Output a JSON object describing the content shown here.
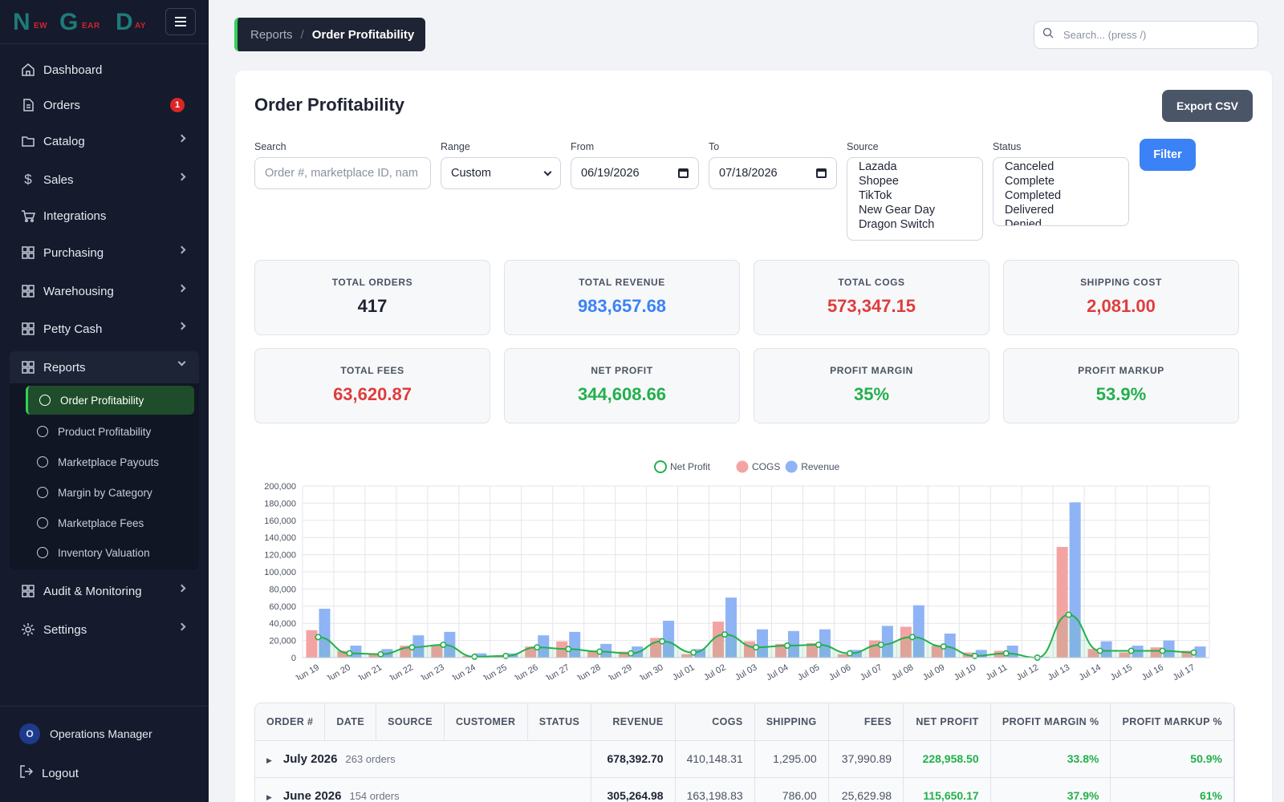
{
  "brand": {
    "letters": [
      "N",
      "G",
      "D"
    ],
    "small": [
      "EW",
      "EAR",
      "AY"
    ]
  },
  "sidebar": {
    "items": [
      {
        "label": "Dashboard",
        "icon": "home-icon"
      },
      {
        "label": "Orders",
        "icon": "document-icon",
        "badge": "1"
      },
      {
        "label": "Catalog",
        "icon": "folder-icon"
      },
      {
        "label": "Sales",
        "icon": "dollar-icon"
      },
      {
        "label": "Integrations",
        "icon": "cart-icon"
      },
      {
        "label": "Purchasing",
        "icon": "grid-icon"
      },
      {
        "label": "Warehousing",
        "icon": "grid-icon"
      },
      {
        "label": "Petty Cash",
        "icon": "grid-icon"
      },
      {
        "label": "Reports",
        "icon": "grid-icon"
      },
      {
        "label": "Audit & Monitoring",
        "icon": "grid-icon"
      },
      {
        "label": "Settings",
        "icon": "gear-icon"
      }
    ],
    "reports_sub": [
      "Order Profitability",
      "Product Profitability",
      "Marketplace Payouts",
      "Margin by Category",
      "Marketplace Fees",
      "Inventory Valuation"
    ],
    "user": {
      "initial": "O",
      "name": "Operations Manager"
    },
    "logout": "Logout"
  },
  "breadcrumb": {
    "parent": "Reports",
    "sep": "/",
    "current": "Order Profitability"
  },
  "global_search": {
    "placeholder": "Search... (press /)"
  },
  "page": {
    "title": "Order Profitability",
    "export_label": "Export CSV"
  },
  "filters": {
    "search": {
      "label": "Search",
      "placeholder": "Order #, marketplace ID, nam"
    },
    "range": {
      "label": "Range",
      "value": "Custom"
    },
    "from": {
      "label": "From",
      "value": "06/19/2026"
    },
    "to": {
      "label": "To",
      "value": "07/18/2026"
    },
    "source": {
      "label": "Source",
      "options": [
        "Lazada",
        "Shopee",
        "TikTok",
        "New Gear Day",
        "Dragon Switch"
      ]
    },
    "status": {
      "label": "Status",
      "options": [
        "Canceled",
        "Complete",
        "Completed",
        "Delivered",
        "Denied"
      ]
    },
    "filter_label": "Filter"
  },
  "kpis": [
    {
      "label": "TOTAL ORDERS",
      "value": "417",
      "color": "#1e2433"
    },
    {
      "label": "TOTAL REVENUE",
      "value": "983,657.68",
      "color": "#3b82f6"
    },
    {
      "label": "TOTAL COGS",
      "value": "573,347.15",
      "color": "#e03c3c"
    },
    {
      "label": "SHIPPING COST",
      "value": "2,081.00",
      "color": "#e03c3c"
    },
    {
      "label": "TOTAL FEES",
      "value": "63,620.87",
      "color": "#e03c3c"
    },
    {
      "label": "NET PROFIT",
      "value": "344,608.66",
      "color": "#22b04b"
    },
    {
      "label": "PROFIT MARGIN",
      "value": "35%",
      "color": "#22b04b"
    },
    {
      "label": "PROFIT MARKUP",
      "value": "53.9%",
      "color": "#22b04b"
    }
  ],
  "chart_data": {
    "type": "bar",
    "categories": [
      "Jun 19",
      "Jun 20",
      "Jun 21",
      "Jun 22",
      "Jun 23",
      "Jun 24",
      "Jun 25",
      "Jun 26",
      "Jun 27",
      "Jun 28",
      "Jun 29",
      "Jun 30",
      "Jul 01",
      "Jul 02",
      "Jul 03",
      "Jul 04",
      "Jul 05",
      "Jul 06",
      "Jul 07",
      "Jul 08",
      "Jul 09",
      "Jul 10",
      "Jul 11",
      "Jul 12",
      "Jul 13",
      "Jul 14",
      "Jul 15",
      "Jul 16",
      "Jul 17"
    ],
    "series": [
      {
        "name": "Net Profit",
        "type": "line",
        "color": "#22b04b",
        "values": [
          24000,
          5000,
          4000,
          12000,
          15000,
          1000,
          2000,
          12000,
          10000,
          7000,
          5000,
          19000,
          6000,
          27000,
          12000,
          14000,
          15000,
          5000,
          15000,
          24000,
          13000,
          2000,
          5000,
          0,
          50000,
          8000,
          8000,
          8000,
          6000
        ]
      },
      {
        "name": "COGS",
        "type": "bar",
        "color": "#f4a3a3",
        "values": [
          32000,
          8000,
          5000,
          14000,
          15000,
          2000,
          2000,
          13000,
          19000,
          8000,
          7000,
          23000,
          4000,
          42000,
          19000,
          16000,
          17000,
          4000,
          20000,
          36000,
          14000,
          6000,
          8000,
          0,
          129000,
          10000,
          6000,
          12000,
          8000
        ]
      },
      {
        "name": "Revenue",
        "type": "bar",
        "color": "#8fb4f5",
        "values": [
          57000,
          14000,
          10000,
          26000,
          30000,
          5000,
          5000,
          26000,
          30000,
          16000,
          13000,
          43000,
          10000,
          70000,
          33000,
          31000,
          33000,
          9000,
          37000,
          61000,
          28000,
          9000,
          14000,
          1000,
          181000,
          19000,
          14000,
          20000,
          13000
        ]
      }
    ],
    "ylim": [
      0,
      200000
    ],
    "yticks": [
      "200,000",
      "180,000",
      "160,000",
      "140,000",
      "120,000",
      "100,000",
      "80,000",
      "60,000",
      "40,000",
      "20,000",
      "0"
    ],
    "legend_position": "top-center",
    "grid": true
  },
  "table": {
    "columns": [
      "ORDER #",
      "DATE",
      "SOURCE",
      "CUSTOMER",
      "STATUS",
      "REVENUE",
      "COGS",
      "SHIPPING",
      "FEES",
      "NET PROFIT",
      "PROFIT MARGIN %",
      "PROFIT MARKUP %"
    ],
    "groups": [
      {
        "label": "July 2026",
        "count": "263 orders",
        "revenue": "678,392.70",
        "cogs": "410,148.31",
        "shipping": "1,295.00",
        "fees": "37,990.89",
        "net": "228,958.50",
        "margin": "33.8%",
        "markup": "50.9%"
      },
      {
        "label": "June 2026",
        "count": "154 orders",
        "revenue": "305,264.98",
        "cogs": "163,198.83",
        "shipping": "786.00",
        "fees": "25,629.98",
        "net": "115,650.17",
        "margin": "37.9%",
        "markup": "61%"
      }
    ]
  }
}
